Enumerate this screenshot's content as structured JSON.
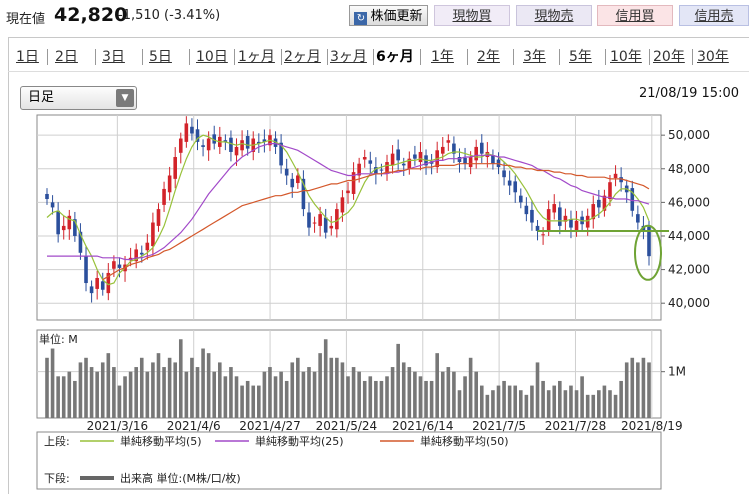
{
  "header": {
    "price_label": "現在値",
    "price_value": "42,820",
    "price_change": "-1,510 (-3.41%)",
    "buttons": {
      "refresh": "株価更新",
      "spot_buy": "現物買",
      "spot_sell": "現物売",
      "margin_buy": "信用買",
      "margin_sell": "信用売"
    }
  },
  "tabs": [
    "1日",
    "2日",
    "3日",
    "5日",
    "10日",
    "1ヶ月",
    "2ヶ月",
    "3ヶ月",
    "6ヶ月",
    "1年",
    "2年",
    "3年",
    "5年",
    "10年",
    "20年",
    "30年"
  ],
  "active_tab": "6ヶ月",
  "chart_type_select": {
    "value": "日足"
  },
  "timestamp": "21/08/19 15:00",
  "chart_data": [
    {
      "type": "line",
      "title": "",
      "x_tick_labels": [
        "2021/3/16",
        "2021/4/6",
        "2021/4/27",
        "2021/5/24",
        "2021/6/14",
        "2021/7/5",
        "2021/7/28",
        "2021/8/19"
      ],
      "y_tick_labels": [
        "40,000",
        "42,000",
        "44,000",
        "46,000",
        "48,000",
        "50,000"
      ],
      "ylim": [
        39000,
        51200
      ],
      "grid": true,
      "candles_close": [
        46200,
        45700,
        44100,
        44600,
        45200,
        44000,
        43000,
        41200,
        40600,
        41500,
        40800,
        41800,
        42500,
        42100,
        42300,
        42700,
        43200,
        42900,
        43600,
        44800,
        45600,
        46800,
        47600,
        48700,
        49800,
        50700,
        50100,
        49600,
        49300,
        49800,
        49500,
        49900,
        49600,
        49000,
        49300,
        49700,
        49200,
        49800,
        49500,
        49600,
        50000,
        49300,
        48200,
        47600,
        46900,
        47600,
        45600,
        44500,
        44800,
        45300,
        44200,
        44600,
        45600,
        46300,
        46700,
        47800,
        48300,
        48700,
        48300,
        47700,
        47900,
        48400,
        48900,
        48500,
        48200,
        48600,
        48600,
        49000,
        48200,
        48300,
        49100,
        49300,
        49700,
        48900,
        48400,
        48300,
        48700,
        49300,
        48900,
        49000,
        48300,
        48100,
        47500,
        47000,
        46600,
        46000,
        45300,
        44800,
        44300,
        44100,
        45600,
        45900,
        44600,
        45200,
        44500,
        44900,
        44700,
        45200,
        45900,
        45700,
        46400,
        47200,
        47700,
        47200,
        46600,
        45500,
        44800,
        44300,
        42800
      ],
      "series": [
        {
          "name": "単純移動平均(5)",
          "color": "#98c13a",
          "values": [
            45100,
            45400,
            45500,
            45200,
            45000,
            44900,
            44100,
            43400,
            42800,
            42000,
            41400,
            41100,
            41200,
            41800,
            42100,
            42500,
            42600,
            42800,
            43000,
            43300,
            43900,
            44600,
            45600,
            46700,
            47700,
            48600,
            49300,
            49800,
            50000,
            49900,
            49700,
            49600,
            49600,
            49500,
            49400,
            49500,
            49400,
            49400,
            49500,
            49600,
            49700,
            49600,
            49400,
            49000,
            48400,
            47800,
            47100,
            46400,
            45900,
            45500,
            45100,
            44800,
            44900,
            45200,
            45400,
            45800,
            46500,
            47200,
            47700,
            48000,
            48100,
            48200,
            48200,
            48300,
            48400,
            48500,
            48500,
            48600,
            48500,
            48500,
            48600,
            48700,
            48900,
            49000,
            49000,
            48900,
            48800,
            48700,
            48700,
            48900,
            48800,
            48700,
            48400,
            48100,
            47700,
            47200,
            46700,
            46100,
            45500,
            45100,
            44900,
            44900,
            44900,
            44900,
            45000,
            45000,
            44900,
            44900,
            45100,
            45300,
            45600,
            46000,
            46500,
            46800,
            46800,
            46600,
            46200,
            45700,
            44900
          ]
        },
        {
          "name": "単純移動平均(25)",
          "color": "#a24ac9",
          "values": [
            42800,
            42800,
            42800,
            42800,
            42800,
            42800,
            42800,
            42800,
            42800,
            42800,
            42700,
            42700,
            42700,
            42700,
            42600,
            42600,
            42700,
            42700,
            42800,
            42900,
            43100,
            43300,
            43600,
            43900,
            44200,
            44600,
            45000,
            45500,
            46000,
            46500,
            46900,
            47300,
            47700,
            48100,
            48400,
            48700,
            48900,
            49100,
            49300,
            49400,
            49500,
            49500,
            49400,
            49300,
            49200,
            49100,
            48900,
            48700,
            48500,
            48300,
            48100,
            47900,
            47800,
            47700,
            47600,
            47600,
            47700,
            47700,
            47700,
            47700,
            47700,
            47700,
            47800,
            47800,
            47900,
            48000,
            48100,
            48200,
            48300,
            48400,
            48500,
            48500,
            48600,
            48600,
            48600,
            48700,
            48700,
            48800,
            48800,
            48800,
            48800,
            48700,
            48700,
            48600,
            48500,
            48400,
            48300,
            48200,
            48000,
            47900,
            47700,
            47500,
            47400,
            47200,
            47000,
            46900,
            46700,
            46600,
            46500,
            46400,
            46300,
            46300,
            46200,
            46200,
            46200,
            46100,
            46100,
            46000,
            45900
          ]
        },
        {
          "name": "単純移動平均(50)",
          "color": "#d4582b",
          "values": [
            null,
            null,
            null,
            null,
            null,
            null,
            null,
            null,
            null,
            null,
            41400,
            41600,
            41800,
            42000,
            42100,
            42300,
            42400,
            42500,
            42700,
            42800,
            42900,
            43100,
            43200,
            43400,
            43600,
            43800,
            44000,
            44200,
            44400,
            44600,
            44800,
            45000,
            45200,
            45400,
            45600,
            45800,
            45900,
            46000,
            46100,
            46200,
            46300,
            46400,
            46400,
            46500,
            46600,
            46600,
            46700,
            46700,
            46800,
            46900,
            47000,
            47100,
            47100,
            47200,
            47300,
            47300,
            47400,
            47500,
            47600,
            47700,
            47700,
            47800,
            47800,
            47900,
            47900,
            48000,
            48000,
            48000,
            48100,
            48100,
            48200,
            48200,
            48200,
            48200,
            48300,
            48300,
            48300,
            48300,
            48300,
            48300,
            48300,
            48300,
            48200,
            48200,
            48100,
            48100,
            48000,
            48000,
            47900,
            47900,
            47900,
            47800,
            47800,
            47700,
            47700,
            47600,
            47600,
            47500,
            47500,
            47500,
            47500,
            47400,
            47400,
            47400,
            47300,
            47200,
            47100,
            47000,
            46800
          ]
        }
      ],
      "annotations": {
        "support_line_value": 44300,
        "highlight": "ellipse"
      }
    },
    {
      "type": "bar",
      "title": "",
      "unit_label": "単位: M",
      "y_tick_labels": [
        "1M"
      ],
      "ylim": [
        0,
        1.9
      ],
      "series": [
        {
          "name": "出来高",
          "values": [
            1.3,
            1.5,
            0.9,
            0.9,
            1.0,
            0.8,
            1.2,
            1.3,
            1.1,
            1.0,
            1.2,
            1.4,
            1.1,
            0.7,
            0.9,
            1.0,
            1.1,
            1.3,
            1.0,
            1.2,
            1.4,
            1.1,
            1.3,
            1.2,
            1.7,
            1.0,
            1.3,
            1.1,
            1.5,
            1.4,
            1.0,
            1.2,
            0.9,
            1.1,
            0.9,
            0.7,
            0.8,
            0.7,
            0.7,
            1.0,
            1.1,
            0.9,
            1.0,
            0.8,
            1.2,
            1.3,
            1.0,
            1.1,
            1.0,
            1.4,
            1.7,
            1.3,
            1.3,
            1.2,
            0.9,
            1.1,
            1.0,
            0.8,
            0.9,
            0.8,
            0.8,
            0.9,
            1.1,
            1.6,
            1.2,
            1.1,
            1.0,
            0.9,
            0.8,
            0.8,
            1.4,
            1.0,
            1.1,
            1.0,
            0.6,
            0.9,
            1.3,
            1.0,
            0.7,
            0.5,
            0.6,
            0.7,
            0.8,
            0.7,
            0.7,
            0.6,
            0.5,
            0.7,
            1.2,
            0.8,
            0.6,
            0.7,
            0.8,
            0.6,
            0.7,
            0.6,
            0.9,
            0.5,
            0.5,
            0.6,
            0.7,
            0.6,
            0.5,
            0.8,
            1.2,
            1.3,
            1.2,
            1.3,
            1.2
          ]
        }
      ]
    }
  ],
  "legend": {
    "upper_label": "上段:",
    "items": [
      "単純移動平均(5)",
      "単純移動平均(25)",
      "単純移動平均(50)"
    ],
    "lower_label": "下段:",
    "lower_item": "出来高 単位:(M株/口/枚)"
  },
  "colors": {
    "up": "#d2232a",
    "down": "#2b4f9c",
    "support_line": "#6fa335",
    "volume": "#777777",
    "grid": "#cfcfcf"
  }
}
